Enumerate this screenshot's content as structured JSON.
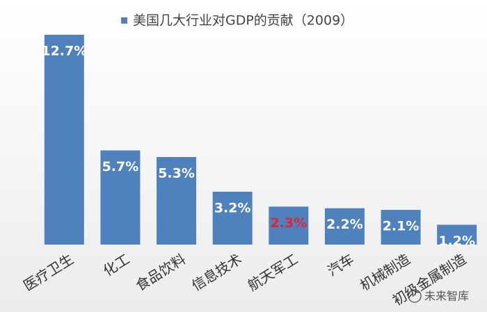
{
  "chart_data": {
    "type": "bar",
    "title": "美国几大行业对GDP的贡献（2009）",
    "categories": [
      "医疗卫生",
      "化工",
      "食品饮料",
      "信息技术",
      "航天军工",
      "汽车",
      "机械制造",
      "初级金属制造"
    ],
    "values": [
      12.7,
      5.7,
      5.3,
      3.2,
      2.3,
      2.2,
      2.1,
      1.2
    ],
    "value_labels": [
      "12.7%",
      "5.7%",
      "5.3%",
      "3.2%",
      "2.3%",
      "2.2%",
      "2.1%",
      "1.2%"
    ],
    "value_label_colors": [
      "#ffffff",
      "#ffffff",
      "#ffffff",
      "#ffffff",
      "#e8212b",
      "#ffffff",
      "#ffffff",
      "#ffffff"
    ],
    "color": "#4f81bd",
    "watermark": "未来智库"
  }
}
